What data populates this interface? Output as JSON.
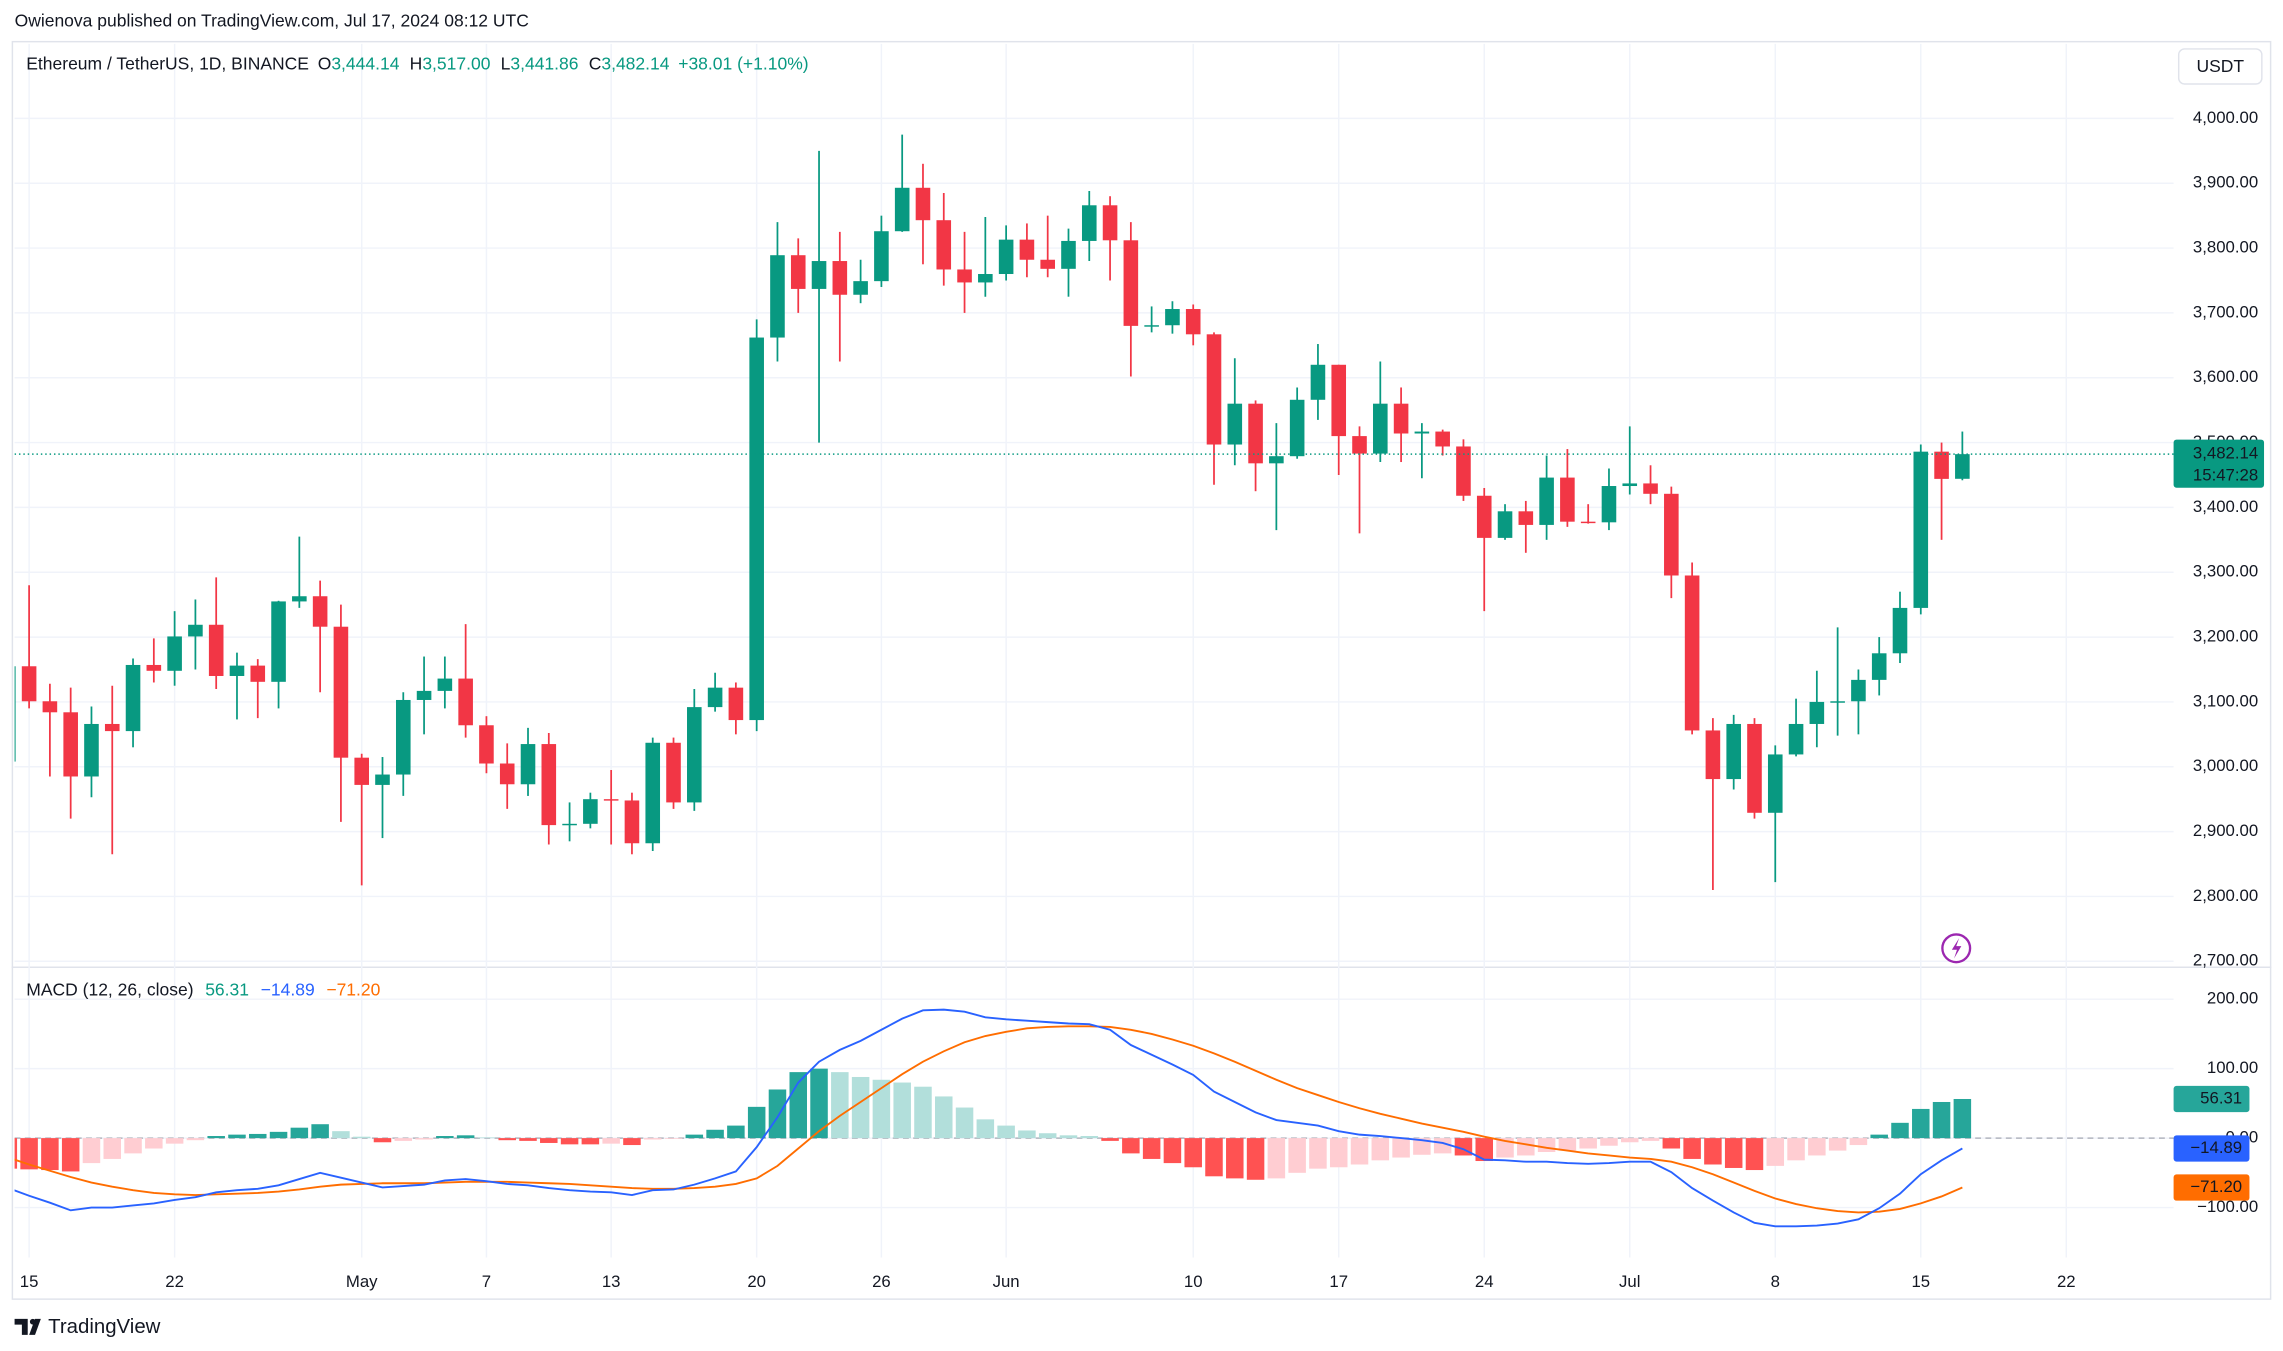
{
  "header": {
    "published": "Owienova published on TradingView.com, Jul 17, 2024 08:12 UTC"
  },
  "footer": "TradingView",
  "chart_data": [
    {
      "type": "candlestick",
      "legend": {
        "title": "Ethereum / TetherUS, 1D, BINANCE",
        "items": [
          {
            "key": "O",
            "label": "3,444.14"
          },
          {
            "key": "H",
            "label": "3,517.00"
          },
          {
            "key": "L",
            "label": "3,441.86"
          },
          {
            "key": "C",
            "label": "3,482.14"
          }
        ],
        "change": "+38.01 (+1.10%)"
      },
      "currency": "USDT",
      "last_price_label": "3,482.14",
      "countdown": "15:47:28",
      "colors": {
        "up": "#089981",
        "down": "#f23645"
      },
      "grid": true,
      "ylim": [
        2693,
        4115
      ],
      "yticks": [
        {
          "value": 2700,
          "label": "2,700.00"
        },
        {
          "value": 2800,
          "label": "2,800.00"
        },
        {
          "value": 2900,
          "label": "2,900.00"
        },
        {
          "value": 3000,
          "label": "3,000.00"
        },
        {
          "value": 3100,
          "label": "3,100.00"
        },
        {
          "value": 3200,
          "label": "3,200.00"
        },
        {
          "value": 3300,
          "label": "3,300.00"
        },
        {
          "value": 3400,
          "label": "3,400.00"
        },
        {
          "value": 3500,
          "label": "3,500.00"
        },
        {
          "value": 3600,
          "label": "3,600.00"
        },
        {
          "value": 3700,
          "label": "3,700.00"
        },
        {
          "value": 3800,
          "label": "3,800.00"
        },
        {
          "value": 3900,
          "label": "3,900.00"
        },
        {
          "value": 4000,
          "label": "4,000.00"
        }
      ],
      "ohlc": [
        [
          3008,
          3160,
          2995,
          3155
        ],
        [
          3155,
          3280,
          3090,
          3101
        ],
        [
          3101,
          3128,
          2985,
          3084
        ],
        [
          3084,
          3122,
          2920,
          2985
        ],
        [
          2985,
          3093,
          2953,
          3066
        ],
        [
          3066,
          3125,
          2865,
          3055
        ],
        [
          3055,
          3167,
          3030,
          3157
        ],
        [
          3157,
          3198,
          3130,
          3148
        ],
        [
          3148,
          3240,
          3125,
          3201
        ],
        [
          3201,
          3258,
          3150,
          3219
        ],
        [
          3219,
          3292,
          3120,
          3140
        ],
        [
          3140,
          3176,
          3073,
          3156
        ],
        [
          3156,
          3166,
          3075,
          3131
        ],
        [
          3131,
          3256,
          3090,
          3255
        ],
        [
          3255,
          3355,
          3245,
          3263
        ],
        [
          3263,
          3287,
          3115,
          3216
        ],
        [
          3216,
          3250,
          2915,
          3014
        ],
        [
          3014,
          3020,
          2817,
          2972
        ],
        [
          2972,
          3015,
          2890,
          2988
        ],
        [
          2988,
          3115,
          2955,
          3103
        ],
        [
          3103,
          3170,
          3050,
          3117
        ],
        [
          3117,
          3170,
          3090,
          3136
        ],
        [
          3136,
          3220,
          3045,
          3064
        ],
        [
          3064,
          3078,
          2990,
          3005
        ],
        [
          3005,
          3036,
          2935,
          2973
        ],
        [
          2973,
          3060,
          2955,
          3035
        ],
        [
          3035,
          3052,
          2880,
          2910
        ],
        [
          2910,
          2945,
          2885,
          2912
        ],
        [
          2912,
          2960,
          2905,
          2950
        ],
        [
          2950,
          2995,
          2880,
          2948
        ],
        [
          2948,
          2960,
          2865,
          2882
        ],
        [
          2882,
          3045,
          2870,
          3037
        ],
        [
          3037,
          3045,
          2935,
          2945
        ],
        [
          2945,
          3120,
          2932,
          3092
        ],
        [
          3092,
          3145,
          3085,
          3122
        ],
        [
          3122,
          3130,
          3050,
          3072
        ],
        [
          3072,
          3690,
          3055,
          3662
        ],
        [
          3662,
          3840,
          3625,
          3789
        ],
        [
          3789,
          3815,
          3700,
          3737
        ],
        [
          3737,
          3950,
          3500,
          3780
        ],
        [
          3780,
          3825,
          3625,
          3728
        ],
        [
          3728,
          3782,
          3715,
          3749
        ],
        [
          3749,
          3850,
          3740,
          3826
        ],
        [
          3826,
          3975,
          3825,
          3893
        ],
        [
          3893,
          3930,
          3775,
          3843
        ],
        [
          3843,
          3885,
          3742,
          3767
        ],
        [
          3767,
          3825,
          3700,
          3747
        ],
        [
          3747,
          3848,
          3725,
          3760
        ],
        [
          3760,
          3835,
          3750,
          3813
        ],
        [
          3813,
          3838,
          3755,
          3782
        ],
        [
          3782,
          3850,
          3755,
          3768
        ],
        [
          3768,
          3830,
          3725,
          3811
        ],
        [
          3811,
          3888,
          3780,
          3866
        ],
        [
          3866,
          3880,
          3750,
          3812
        ],
        [
          3812,
          3840,
          3602,
          3680
        ],
        [
          3680,
          3710,
          3670,
          3681
        ],
        [
          3681,
          3718,
          3668,
          3706
        ],
        [
          3706,
          3713,
          3650,
          3667
        ],
        [
          3667,
          3670,
          3435,
          3497
        ],
        [
          3497,
          3630,
          3465,
          3560
        ],
        [
          3560,
          3565,
          3425,
          3468
        ],
        [
          3468,
          3530,
          3365,
          3479
        ],
        [
          3479,
          3585,
          3475,
          3566
        ],
        [
          3566,
          3652,
          3535,
          3620
        ],
        [
          3620,
          3620,
          3450,
          3510
        ],
        [
          3510,
          3525,
          3360,
          3483
        ],
        [
          3483,
          3625,
          3470,
          3560
        ],
        [
          3560,
          3585,
          3470,
          3514
        ],
        [
          3514,
          3530,
          3445,
          3517
        ],
        [
          3517,
          3520,
          3480,
          3494
        ],
        [
          3494,
          3505,
          3410,
          3418
        ],
        [
          3418,
          3430,
          3240,
          3353
        ],
        [
          3353,
          3405,
          3350,
          3394
        ],
        [
          3394,
          3410,
          3330,
          3373
        ],
        [
          3373,
          3480,
          3350,
          3446
        ],
        [
          3446,
          3490,
          3370,
          3378
        ],
        [
          3378,
          3405,
          3375,
          3377
        ],
        [
          3377,
          3460,
          3365,
          3433
        ],
        [
          3433,
          3525,
          3420,
          3437
        ],
        [
          3437,
          3465,
          3405,
          3421
        ],
        [
          3421,
          3432,
          3260,
          3295
        ],
        [
          3295,
          3315,
          3050,
          3056
        ],
        [
          3056,
          3075,
          2810,
          2981
        ],
        [
          2981,
          3080,
          2965,
          3066
        ],
        [
          3066,
          3075,
          2920,
          2929
        ],
        [
          2929,
          3033,
          2822,
          3019
        ],
        [
          3019,
          3105,
          3016,
          3066
        ],
        [
          3066,
          3148,
          3030,
          3100
        ],
        [
          3100,
          3215,
          3048,
          3101
        ],
        [
          3101,
          3150,
          3050,
          3134
        ],
        [
          3134,
          3200,
          3110,
          3175
        ],
        [
          3175,
          3270,
          3160,
          3245
        ],
        [
          3245,
          3497,
          3235,
          3486
        ],
        [
          3486,
          3500,
          3350,
          3444
        ],
        [
          3444.14,
          3517,
          3441.86,
          3482.14
        ],
        null,
        null,
        null,
        null,
        null,
        null,
        null,
        null
      ]
    },
    {
      "type": "macd",
      "title": "MACD (12, 26, close)",
      "grid": true,
      "ylim": [
        -172,
        246
      ],
      "yticks": [
        {
          "value": 200,
          "label": "200.00"
        },
        {
          "value": 100,
          "label": "100.00"
        },
        {
          "value": 0,
          "label": "0.00"
        },
        {
          "value": -100,
          "label": "−100.00"
        }
      ],
      "categories": [
        null,
        "15",
        null,
        null,
        null,
        null,
        null,
        null,
        "22",
        null,
        null,
        null,
        null,
        null,
        null,
        null,
        null,
        "May",
        null,
        null,
        null,
        null,
        null,
        "7",
        null,
        null,
        null,
        null,
        null,
        "13",
        null,
        null,
        null,
        null,
        null,
        null,
        "20",
        null,
        null,
        null,
        null,
        null,
        "26",
        null,
        null,
        null,
        null,
        null,
        "Jun",
        null,
        null,
        null,
        null,
        null,
        null,
        null,
        null,
        "10",
        null,
        null,
        null,
        null,
        null,
        null,
        "17",
        null,
        null,
        null,
        null,
        null,
        null,
        "24",
        null,
        null,
        null,
        null,
        null,
        null,
        "Jul",
        null,
        null,
        null,
        null,
        null,
        null,
        "8",
        null,
        null,
        null,
        null,
        null,
        null,
        "15",
        null,
        null,
        null,
        null,
        null,
        null,
        "22",
        null,
        null,
        null
      ],
      "histogram": {
        "last_label": "56.31",
        "colors": {
          "up_strong": "#26a69a",
          "up_weak": "#b2dfdb",
          "down_strong": "#ff5252",
          "down_weak": "#ffcdd2"
        },
        "values": [
          -44,
          -45,
          -46,
          -48,
          -36,
          -30,
          -22,
          -15,
          -8,
          -3,
          3,
          5,
          6,
          9,
          15,
          20,
          10,
          2,
          -6,
          -4,
          -2,
          3,
          4,
          1,
          -3,
          -4,
          -7,
          -9,
          -9,
          -8,
          -10,
          -2,
          -1,
          5,
          12,
          18,
          45,
          70,
          95,
          100,
          95,
          88,
          84,
          80,
          74,
          60,
          44,
          27,
          18,
          11,
          7,
          4,
          3,
          -4,
          -22,
          -30,
          -36,
          -42,
          -55,
          -58,
          -60,
          -58,
          -50,
          -44,
          -42,
          -38,
          -32,
          -28,
          -24,
          -22,
          -25,
          -33,
          -28,
          -25,
          -20,
          -18,
          -15,
          -11,
          -6,
          -4,
          -15,
          -30,
          -38,
          -43,
          -46,
          -40,
          -32,
          -25,
          -18,
          -10,
          5,
          22,
          42,
          52,
          56.31,
          null,
          null,
          null,
          null,
          null,
          null,
          null,
          null
        ]
      },
      "macd": {
        "color": "#2962ff",
        "last_label": "−14.89",
        "values": [
          -72,
          -83,
          -93,
          -104,
          -100,
          -100,
          -97,
          -94,
          -89,
          -85,
          -78,
          -75,
          -73,
          -68,
          -59,
          -50,
          -57,
          -64,
          -71,
          -69,
          -67,
          -61,
          -59,
          -62,
          -66,
          -68,
          -72,
          -75,
          -77,
          -78,
          -82,
          -75,
          -74,
          -67,
          -58,
          -48,
          -13,
          30,
          80,
          110,
          127,
          140,
          156,
          172,
          184,
          185,
          182,
          174,
          171,
          169,
          167,
          165,
          164,
          156,
          134,
          120,
          106,
          91,
          67,
          52,
          37,
          26,
          22,
          18,
          10,
          5,
          3,
          0,
          -3,
          -7,
          -16,
          -31,
          -32,
          -34,
          -34,
          -36,
          -37,
          -36,
          -34,
          -34,
          -49,
          -72,
          -90,
          -107,
          -122,
          -127,
          -127,
          -126,
          -123,
          -117,
          -101,
          -80,
          -52,
          -32,
          -14.89,
          null,
          null,
          null,
          null,
          null,
          null,
          null,
          null
        ]
      },
      "signal": {
        "color": "#ff6d00",
        "last_label": "−71.20",
        "values": [
          -28,
          -38,
          -47,
          -56,
          -64,
          -70,
          -75,
          -79,
          -81,
          -82,
          -81,
          -80,
          -79,
          -77,
          -74,
          -70,
          -67,
          -66,
          -65,
          -65,
          -65,
          -64,
          -63,
          -63,
          -63,
          -64,
          -65,
          -66,
          -68,
          -70,
          -72,
          -73,
          -73,
          -72,
          -70,
          -66,
          -58,
          -40,
          -15,
          10,
          32,
          52,
          72,
          92,
          110,
          125,
          138,
          147,
          153,
          158,
          160,
          161,
          161,
          160,
          156,
          150,
          142,
          133,
          122,
          110,
          97,
          84,
          72,
          62,
          52,
          43,
          35,
          28,
          21,
          15,
          9,
          2,
          -4,
          -9,
          -14,
          -18,
          -22,
          -25,
          -28,
          -30,
          -34,
          -42,
          -52,
          -64,
          -76,
          -87,
          -95,
          -101,
          -105,
          -107,
          -106,
          -102,
          -94,
          -84,
          -71.2,
          null,
          null,
          null,
          null,
          null,
          null,
          null,
          null
        ]
      }
    }
  ]
}
